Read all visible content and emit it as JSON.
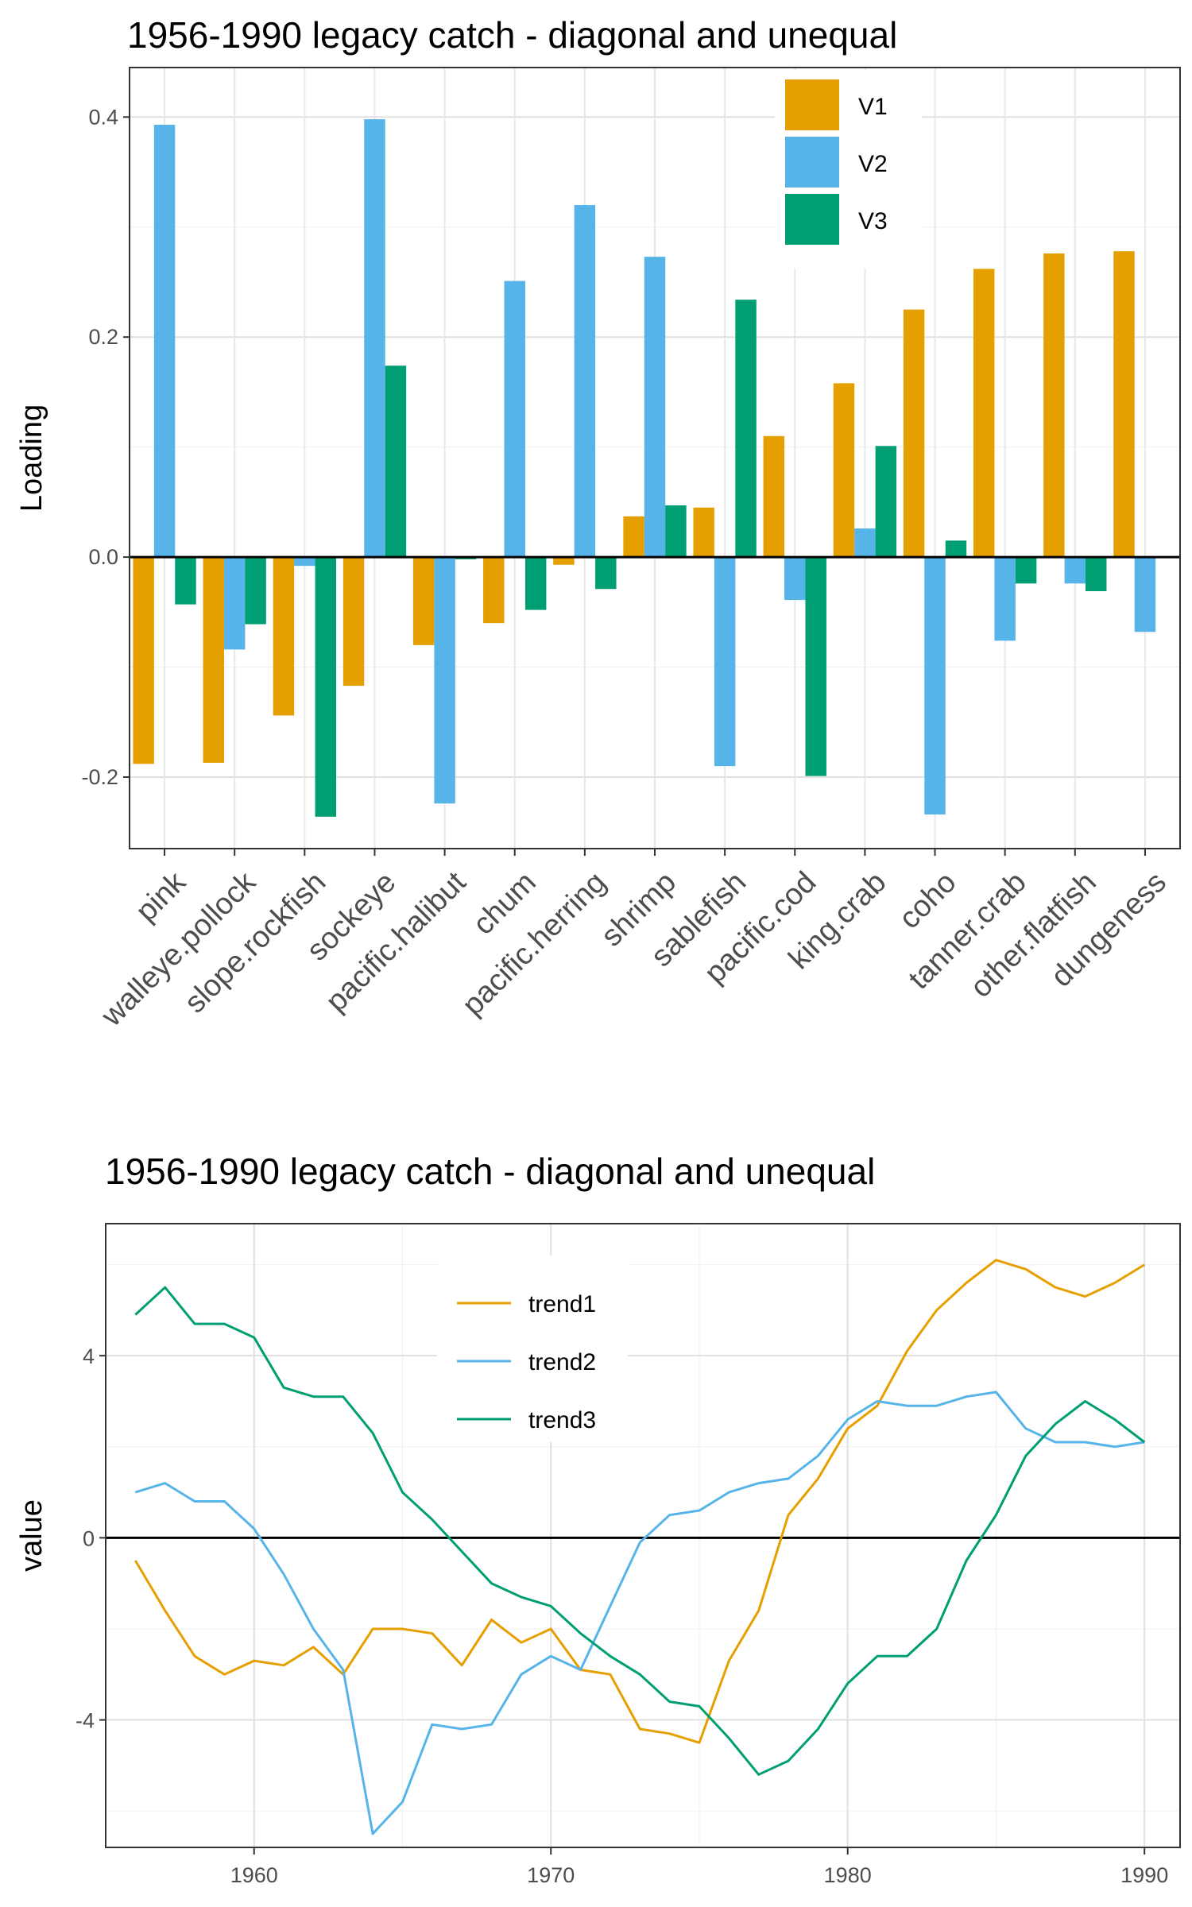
{
  "chart_data": [
    {
      "type": "bar",
      "title": "1956-1990 legacy catch - diagonal and unequal",
      "xlabel": "",
      "ylabel": "Loading",
      "ylim": [
        -0.265,
        0.445
      ],
      "yticks": [
        -0.2,
        0.0,
        0.2,
        0.4
      ],
      "ytick_labels": [
        "-0.2",
        "0.0",
        "0.2",
        "0.4"
      ],
      "grid": true,
      "legend_position": "top-right",
      "categories": [
        "pink",
        "walleye.pollock",
        "slope.rockfish",
        "sockeye",
        "pacific.halibut",
        "chum",
        "pacific.herring",
        "shrimp",
        "sablefish",
        "pacific.cod",
        "king.crab",
        "coho",
        "tanner.crab",
        "other.flatfish",
        "dungeness"
      ],
      "series": [
        {
          "name": "V1",
          "color": "#E69F00",
          "values": [
            -0.188,
            -0.187,
            -0.144,
            -0.117,
            -0.08,
            -0.06,
            -0.007,
            0.037,
            0.045,
            0.11,
            0.158,
            0.225,
            0.262,
            0.276,
            0.278
          ]
        },
        {
          "name": "V2",
          "color": "#56B4E9",
          "values": [
            0.393,
            -0.084,
            -0.008,
            0.398,
            -0.224,
            0.251,
            0.32,
            0.273,
            -0.19,
            -0.039,
            0.026,
            -0.234,
            -0.076,
            -0.024,
            -0.068
          ]
        },
        {
          "name": "V3",
          "color": "#009E73",
          "values": [
            -0.043,
            -0.061,
            -0.236,
            0.174,
            -0.002,
            -0.048,
            -0.029,
            0.047,
            0.234,
            -0.199,
            0.101,
            0.015,
            -0.024,
            -0.031,
            0.0
          ]
        }
      ]
    },
    {
      "type": "line",
      "title": "1956-1990 legacy catch - diagonal and unequal",
      "xlabel": "",
      "ylabel": "value",
      "xlim": [
        1955,
        1991.2
      ],
      "ylim": [
        -6.8,
        6.9
      ],
      "xticks": [
        1960,
        1970,
        1980,
        1990
      ],
      "xtick_labels": [
        "1960",
        "1970",
        "1980",
        "1990"
      ],
      "yticks": [
        -4,
        0,
        4
      ],
      "ytick_labels": [
        "-4",
        "0",
        "4"
      ],
      "grid": true,
      "legend_position": "top-center",
      "x": [
        1956,
        1957,
        1958,
        1959,
        1960,
        1961,
        1962,
        1963,
        1964,
        1965,
        1966,
        1967,
        1968,
        1969,
        1970,
        1971,
        1972,
        1973,
        1974,
        1975,
        1976,
        1977,
        1978,
        1979,
        1980,
        1981,
        1982,
        1983,
        1984,
        1985,
        1986,
        1987,
        1988,
        1989,
        1990
      ],
      "series": [
        {
          "name": "trend1",
          "color": "#E69F00",
          "values": [
            -0.5,
            -1.6,
            -2.6,
            -3.0,
            -2.7,
            -2.8,
            -2.4,
            -3.0,
            -2.0,
            -2.0,
            -2.1,
            -2.8,
            -1.8,
            -2.3,
            -2.0,
            -2.9,
            -3.0,
            -4.2,
            -4.3,
            -4.5,
            -2.7,
            -1.6,
            0.5,
            1.3,
            2.4,
            2.9,
            4.1,
            5.0,
            5.6,
            6.1,
            5.9,
            5.5,
            5.3,
            5.6,
            6.0
          ]
        },
        {
          "name": "trend2",
          "color": "#56B4E9",
          "values": [
            1.0,
            1.2,
            0.8,
            0.8,
            0.2,
            -0.8,
            -2.0,
            -2.9,
            -6.5,
            -5.8,
            -4.1,
            -4.2,
            -4.1,
            -3.0,
            -2.6,
            -2.9,
            -1.5,
            -0.1,
            0.5,
            0.6,
            1.0,
            1.2,
            1.3,
            1.8,
            2.6,
            3.0,
            2.9,
            2.9,
            3.1,
            3.2,
            2.4,
            2.1,
            2.1,
            2.0,
            2.1
          ]
        },
        {
          "name": "trend3",
          "color": "#009E73",
          "values": [
            4.9,
            5.5,
            4.7,
            4.7,
            4.4,
            3.3,
            3.1,
            3.1,
            2.3,
            1.0,
            0.4,
            -0.3,
            -1.0,
            -1.3,
            -1.5,
            -2.1,
            -2.6,
            -3.0,
            -3.6,
            -3.7,
            -4.4,
            -5.2,
            -4.9,
            -4.2,
            -3.2,
            -2.6,
            -2.6,
            -2.0,
            -0.5,
            0.5,
            1.8,
            2.5,
            3.0,
            2.6,
            2.1
          ]
        }
      ]
    }
  ]
}
